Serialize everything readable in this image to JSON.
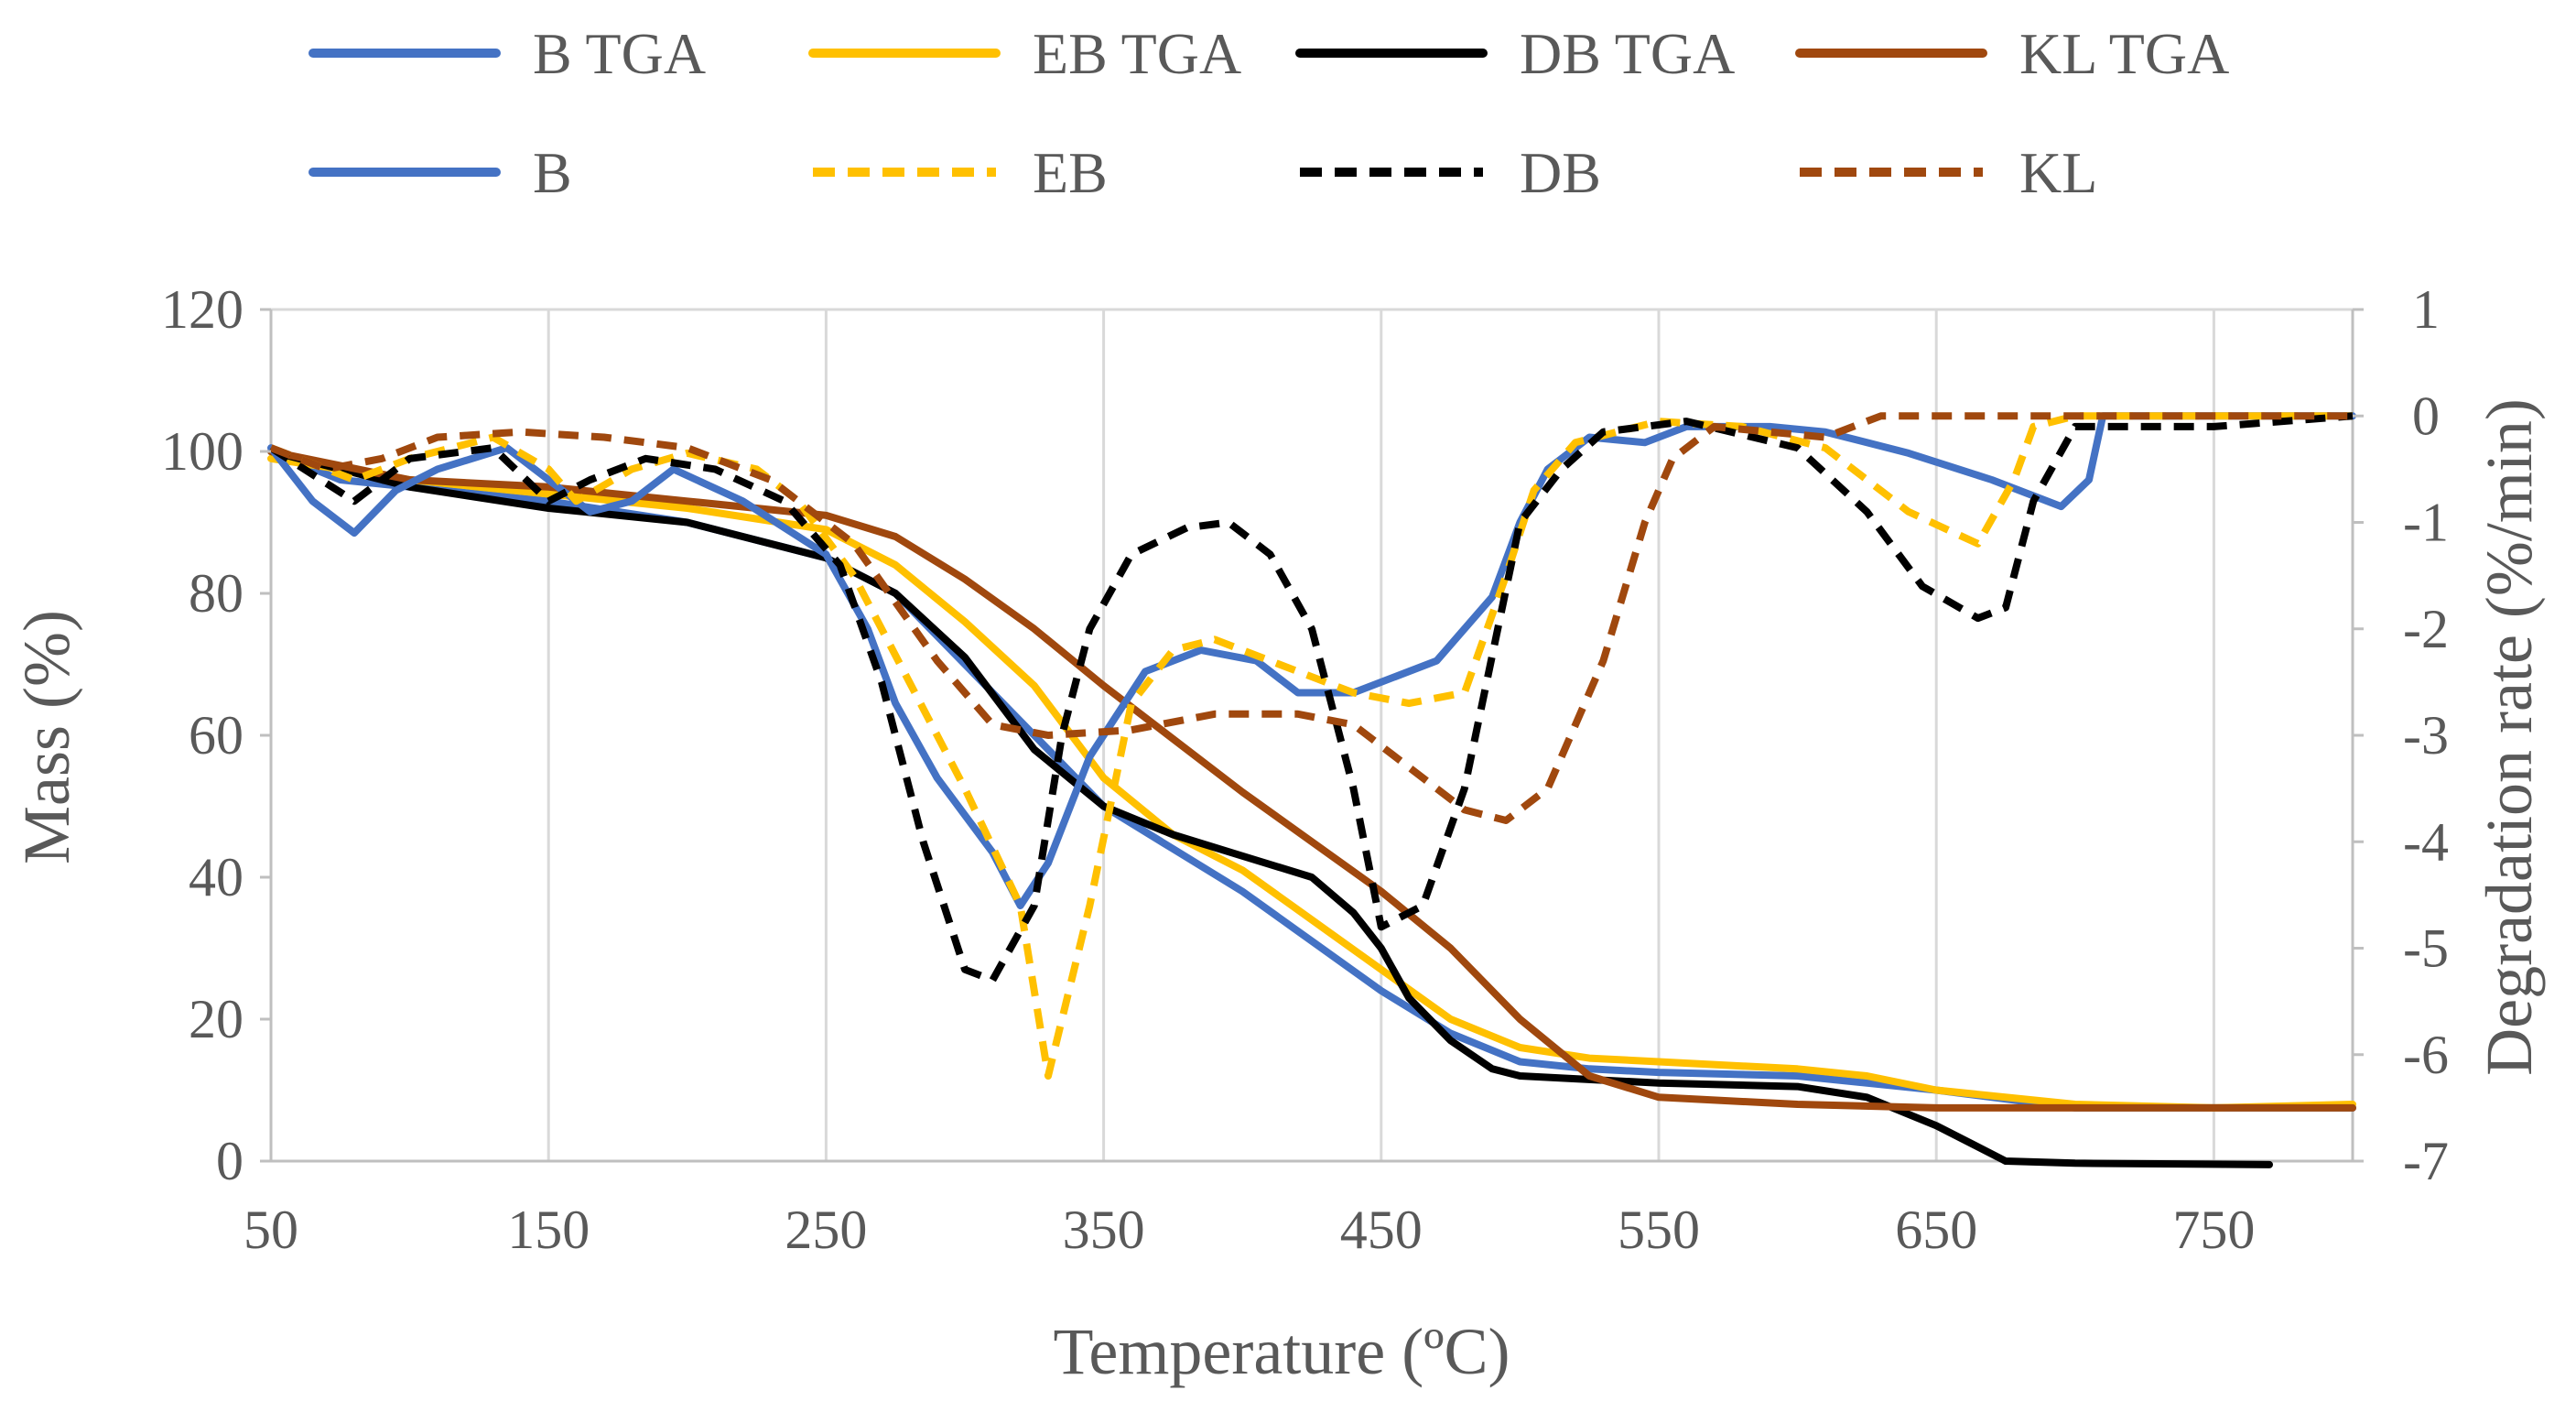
{
  "chart_data": {
    "type": "line",
    "title": "",
    "xlabel": "Temperature (ºC)",
    "ylabel_left": "Mass (%)",
    "ylabel_right": "Degradation rate (%/min)",
    "xlim": [
      50,
      800
    ],
    "ylim_left": [
      0,
      120
    ],
    "ylim_right": [
      -7,
      1
    ],
    "x_ticks": [
      "50",
      "150",
      "250",
      "350",
      "450",
      "550",
      "650",
      "750"
    ],
    "y_left_ticks": [
      "0",
      "20",
      "40",
      "60",
      "80",
      "100",
      "120"
    ],
    "y_right_ticks": [
      "-7",
      "-6",
      "-5",
      "-4",
      "-3",
      "-2",
      "-1",
      "0",
      "1"
    ],
    "grid": "vertical",
    "legend_position": "top",
    "legend": {
      "row1": [
        "B TGA",
        "EB TGA",
        "DB TGA",
        "KL TGA"
      ],
      "row2": [
        "B",
        "EB",
        "DB",
        "KL"
      ]
    },
    "series": [
      {
        "name": "B TGA",
        "axis": "left",
        "style": "solid",
        "color": "#4472C4",
        "points": [
          [
            50,
            100
          ],
          [
            75,
            96
          ],
          [
            100,
            95
          ],
          [
            150,
            93
          ],
          [
            200,
            90
          ],
          [
            250,
            85
          ],
          [
            275,
            80
          ],
          [
            300,
            70
          ],
          [
            325,
            60
          ],
          [
            350,
            50
          ],
          [
            375,
            44
          ],
          [
            400,
            38
          ],
          [
            425,
            31
          ],
          [
            450,
            24
          ],
          [
            475,
            18
          ],
          [
            500,
            14
          ],
          [
            525,
            13
          ],
          [
            550,
            12.5
          ],
          [
            600,
            12
          ],
          [
            650,
            10
          ],
          [
            700,
            7.5
          ],
          [
            750,
            7.5
          ],
          [
            800,
            7.5
          ]
        ]
      },
      {
        "name": "EB TGA",
        "axis": "left",
        "style": "solid",
        "color": "#FFC000",
        "points": [
          [
            50,
            99
          ],
          [
            100,
            96
          ],
          [
            150,
            94
          ],
          [
            200,
            92
          ],
          [
            250,
            89
          ],
          [
            275,
            84
          ],
          [
            300,
            76
          ],
          [
            325,
            67
          ],
          [
            350,
            54
          ],
          [
            375,
            46
          ],
          [
            400,
            41
          ],
          [
            425,
            34
          ],
          [
            450,
            27
          ],
          [
            475,
            20
          ],
          [
            500,
            16
          ],
          [
            525,
            14.5
          ],
          [
            550,
            14
          ],
          [
            600,
            13
          ],
          [
            625,
            12
          ],
          [
            650,
            10
          ],
          [
            700,
            8
          ],
          [
            750,
            7.5
          ],
          [
            800,
            8
          ]
        ]
      },
      {
        "name": "DB TGA",
        "axis": "left",
        "style": "solid",
        "color": "#000000",
        "points": [
          [
            50,
            100
          ],
          [
            100,
            95
          ],
          [
            150,
            92
          ],
          [
            200,
            90
          ],
          [
            250,
            85
          ],
          [
            275,
            80
          ],
          [
            300,
            71
          ],
          [
            325,
            58
          ],
          [
            350,
            50
          ],
          [
            375,
            46
          ],
          [
            400,
            43
          ],
          [
            425,
            40
          ],
          [
            440,
            35
          ],
          [
            450,
            30
          ],
          [
            460,
            23
          ],
          [
            475,
            17
          ],
          [
            490,
            13
          ],
          [
            500,
            12
          ],
          [
            550,
            11
          ],
          [
            600,
            10.5
          ],
          [
            625,
            9
          ],
          [
            650,
            5
          ],
          [
            675,
            0
          ],
          [
            700,
            -0.3
          ],
          [
            770,
            -0.5
          ]
        ]
      },
      {
        "name": "KL TGA",
        "axis": "left",
        "style": "solid",
        "color": "#A0480E",
        "points": [
          [
            50,
            100
          ],
          [
            100,
            96
          ],
          [
            150,
            95
          ],
          [
            200,
            93
          ],
          [
            250,
            91
          ],
          [
            275,
            88
          ],
          [
            300,
            82
          ],
          [
            325,
            75
          ],
          [
            350,
            67
          ],
          [
            400,
            52
          ],
          [
            450,
            38
          ],
          [
            475,
            30
          ],
          [
            500,
            20
          ],
          [
            525,
            12
          ],
          [
            550,
            9
          ],
          [
            600,
            8
          ],
          [
            650,
            7.5
          ],
          [
            700,
            7.5
          ],
          [
            750,
            7.5
          ],
          [
            800,
            7.5
          ]
        ]
      },
      {
        "name": "B",
        "axis": "right",
        "style": "solid",
        "color": "#4472C4",
        "points": [
          [
            50,
            -0.3
          ],
          [
            65,
            -0.8
          ],
          [
            80,
            -1.1
          ],
          [
            95,
            -0.7
          ],
          [
            110,
            -0.5
          ],
          [
            135,
            -0.3
          ],
          [
            150,
            -0.6
          ],
          [
            165,
            -0.9
          ],
          [
            180,
            -0.8
          ],
          [
            195,
            -0.5
          ],
          [
            220,
            -0.8
          ],
          [
            250,
            -1.3
          ],
          [
            265,
            -2
          ],
          [
            275,
            -2.7
          ],
          [
            290,
            -3.4
          ],
          [
            310,
            -4.1
          ],
          [
            320,
            -4.6
          ],
          [
            330,
            -4.2
          ],
          [
            345,
            -3.2
          ],
          [
            365,
            -2.4
          ],
          [
            385,
            -2.2
          ],
          [
            405,
            -2.3
          ],
          [
            420,
            -2.6
          ],
          [
            440,
            -2.6
          ],
          [
            470,
            -2.3
          ],
          [
            490,
            -1.7
          ],
          [
            500,
            -1.0
          ],
          [
            510,
            -0.5
          ],
          [
            525,
            -0.2
          ],
          [
            545,
            -0.25
          ],
          [
            560,
            -0.1
          ],
          [
            590,
            -0.1
          ],
          [
            610,
            -0.15
          ],
          [
            640,
            -0.35
          ],
          [
            670,
            -0.6
          ],
          [
            695,
            -0.85
          ],
          [
            705,
            -0.6
          ],
          [
            710,
            0
          ],
          [
            750,
            0
          ],
          [
            800,
            0
          ]
        ]
      },
      {
        "name": "EB",
        "axis": "right",
        "style": "dashed",
        "color": "#FFC000",
        "points": [
          [
            50,
            -0.3
          ],
          [
            80,
            -0.6
          ],
          [
            100,
            -0.4
          ],
          [
            130,
            -0.2
          ],
          [
            150,
            -0.5
          ],
          [
            160,
            -0.8
          ],
          [
            180,
            -0.5
          ],
          [
            200,
            -0.35
          ],
          [
            225,
            -0.5
          ],
          [
            240,
            -0.8
          ],
          [
            260,
            -1.5
          ],
          [
            280,
            -2.5
          ],
          [
            300,
            -3.5
          ],
          [
            320,
            -4.6
          ],
          [
            330,
            -6.2
          ],
          [
            345,
            -4.6
          ],
          [
            360,
            -2.7
          ],
          [
            375,
            -2.2
          ],
          [
            390,
            -2.1
          ],
          [
            420,
            -2.4
          ],
          [
            440,
            -2.6
          ],
          [
            460,
            -2.7
          ],
          [
            480,
            -2.6
          ],
          [
            495,
            -1.5
          ],
          [
            505,
            -0.7
          ],
          [
            520,
            -0.25
          ],
          [
            550,
            -0.05
          ],
          [
            580,
            -0.1
          ],
          [
            610,
            -0.3
          ],
          [
            640,
            -0.9
          ],
          [
            665,
            -1.2
          ],
          [
            678,
            -0.6
          ],
          [
            685,
            -0.1
          ],
          [
            700,
            0
          ],
          [
            800,
            0
          ]
        ]
      },
      {
        "name": "DB",
        "axis": "right",
        "style": "dashed",
        "color": "#000000",
        "points": [
          [
            50,
            -0.3
          ],
          [
            80,
            -0.8
          ],
          [
            100,
            -0.4
          ],
          [
            130,
            -0.3
          ],
          [
            150,
            -0.8
          ],
          [
            165,
            -0.6
          ],
          [
            185,
            -0.4
          ],
          [
            210,
            -0.5
          ],
          [
            235,
            -0.8
          ],
          [
            255,
            -1.4
          ],
          [
            270,
            -2.5
          ],
          [
            285,
            -4
          ],
          [
            300,
            -5.2
          ],
          [
            310,
            -5.3
          ],
          [
            325,
            -4.6
          ],
          [
            335,
            -3
          ],
          [
            345,
            -2
          ],
          [
            360,
            -1.3
          ],
          [
            380,
            -1.05
          ],
          [
            395,
            -1.0
          ],
          [
            410,
            -1.3
          ],
          [
            425,
            -2
          ],
          [
            440,
            -3.5
          ],
          [
            450,
            -4.8
          ],
          [
            465,
            -4.6
          ],
          [
            480,
            -3.5
          ],
          [
            500,
            -1
          ],
          [
            515,
            -0.5
          ],
          [
            530,
            -0.15
          ],
          [
            560,
            -0.05
          ],
          [
            600,
            -0.3
          ],
          [
            625,
            -0.9
          ],
          [
            645,
            -1.6
          ],
          [
            665,
            -1.9
          ],
          [
            675,
            -1.8
          ],
          [
            685,
            -0.8
          ],
          [
            700,
            -0.1
          ],
          [
            750,
            -0.1
          ],
          [
            800,
            0
          ]
        ]
      },
      {
        "name": "KL",
        "axis": "right",
        "style": "dashed",
        "color": "#A0480E",
        "points": [
          [
            50,
            -0.3
          ],
          [
            70,
            -0.5
          ],
          [
            90,
            -0.4
          ],
          [
            110,
            -0.2
          ],
          [
            140,
            -0.15
          ],
          [
            170,
            -0.2
          ],
          [
            200,
            -0.3
          ],
          [
            230,
            -0.6
          ],
          [
            260,
            -1.2
          ],
          [
            290,
            -2.3
          ],
          [
            310,
            -2.9
          ],
          [
            330,
            -3.0
          ],
          [
            360,
            -2.95
          ],
          [
            390,
            -2.8
          ],
          [
            420,
            -2.8
          ],
          [
            440,
            -2.9
          ],
          [
            460,
            -3.3
          ],
          [
            480,
            -3.7
          ],
          [
            495,
            -3.8
          ],
          [
            510,
            -3.5
          ],
          [
            530,
            -2.3
          ],
          [
            545,
            -1
          ],
          [
            555,
            -0.4
          ],
          [
            570,
            -0.1
          ],
          [
            590,
            -0.15
          ],
          [
            610,
            -0.2
          ],
          [
            630,
            0
          ],
          [
            680,
            0
          ],
          [
            750,
            0
          ],
          [
            800,
            0
          ]
        ]
      }
    ]
  }
}
